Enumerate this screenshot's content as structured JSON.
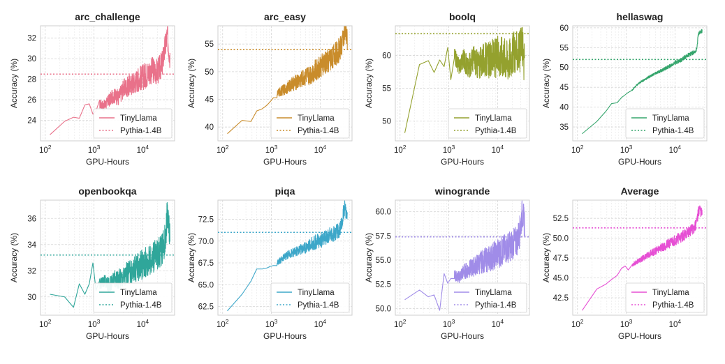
{
  "figure": {
    "xlabel": "GPU-Hours",
    "ylabel": "Accuracy (%)",
    "legend": [
      "TinyLlama",
      "Pythia-1.4B"
    ]
  },
  "chart_data": [
    {
      "type": "line",
      "title": "arc_challenge",
      "xlabel": "GPU-Hours",
      "ylabel": "Accuracy (%)",
      "x_scale": "log",
      "xlim": [
        80,
        45000
      ],
      "ylim": [
        22.0,
        33.2
      ],
      "xticks": [
        100,
        1000,
        10000
      ],
      "xtick_labels": [
        "10^2",
        "10^3",
        "10^4"
      ],
      "yticks": [
        24,
        26,
        28,
        30,
        32
      ],
      "ytick_labels": [
        "24",
        "26",
        "28",
        "30",
        "32"
      ],
      "legend_position": "lower-right",
      "grid": true,
      "color": "#e9718a",
      "series": [
        {
          "name": "TinyLlama",
          "style": "solid",
          "x": [
            125,
            250,
            380,
            500,
            650,
            800,
            950,
            1100,
            1300,
            1600,
            2000,
            2500,
            3200,
            4000,
            5000,
            6500,
            8000,
            10000,
            13000,
            16000,
            20000,
            25000,
            28000,
            30000,
            32000,
            34000,
            36000
          ],
          "y": [
            22.6,
            23.9,
            24.3,
            24.2,
            25.5,
            25.6,
            24.6,
            24.9,
            25.6,
            25.4,
            25.9,
            26.4,
            26.2,
            27.1,
            27.3,
            27.6,
            28.0,
            28.2,
            28.6,
            28.9,
            28.7,
            29.5,
            30.8,
            31.6,
            32.3,
            31.0,
            30.2
          ],
          "noise_from": 1300,
          "noise_amplitude": 1.3
        },
        {
          "name": "Pythia-1.4B",
          "style": "dotted",
          "value": 28.5
        }
      ]
    },
    {
      "type": "line",
      "title": "arc_easy",
      "xlabel": "GPU-Hours",
      "ylabel": "Accuracy (%)",
      "x_scale": "log",
      "xlim": [
        80,
        45000
      ],
      "ylim": [
        37.5,
        58.3
      ],
      "xticks": [
        100,
        1000,
        10000
      ],
      "xtick_labels": [
        "10^2",
        "10^3",
        "10^4"
      ],
      "yticks": [
        40,
        45,
        50,
        55
      ],
      "ytick_labels": [
        "40",
        "45",
        "50",
        "55"
      ],
      "legend_position": "lower-right",
      "grid": true,
      "color": "#c98c2b",
      "series": [
        {
          "name": "TinyLlama",
          "style": "solid",
          "x": [
            125,
            250,
            380,
            500,
            650,
            800,
            950,
            1100,
            1300,
            1600,
            2000,
            2500,
            3200,
            4000,
            5000,
            6500,
            8000,
            10000,
            13000,
            16000,
            20000,
            25000,
            28000,
            30000,
            32000,
            34000,
            36000
          ],
          "y": [
            38.8,
            41.2,
            41.0,
            42.9,
            43.3,
            43.9,
            44.6,
            45.3,
            45.9,
            46.5,
            47.0,
            47.6,
            48.1,
            48.6,
            49.1,
            49.6,
            50.2,
            50.8,
            51.6,
            52.3,
            53.0,
            54.0,
            55.0,
            56.5,
            57.3,
            56.4,
            55.9
          ],
          "noise_from": 1300,
          "noise_amplitude": 2.2
        },
        {
          "name": "Pythia-1.4B",
          "style": "dotted",
          "value": 54.0
        }
      ]
    },
    {
      "type": "line",
      "title": "boolq",
      "xlabel": "GPU-Hours",
      "ylabel": "Accuracy (%)",
      "x_scale": "log",
      "xlim": [
        80,
        45000
      ],
      "ylim": [
        47.0,
        64.5
      ],
      "xticks": [
        100,
        1000,
        10000
      ],
      "xtick_labels": [
        "10^2",
        "10^3",
        "10^4"
      ],
      "yticks": [
        50,
        55,
        60
      ],
      "ytick_labels": [
        "50",
        "55",
        "60"
      ],
      "legend_position": "lower-right",
      "grid": true,
      "color": "#94a12e",
      "series": [
        {
          "name": "TinyLlama",
          "style": "solid",
          "x": [
            125,
            250,
            380,
            500,
            650,
            800,
            950,
            1100,
            1300,
            1600,
            2000,
            2500,
            3200,
            4000,
            5000,
            6500,
            8000,
            10000,
            13000,
            16000,
            20000,
            25000,
            28000,
            30000,
            32000,
            34000,
            36000
          ],
          "y": [
            48.2,
            58.6,
            59.2,
            57.4,
            59.3,
            58.3,
            61.2,
            56.3,
            60.0,
            58.4,
            59.5,
            58.0,
            59.7,
            58.5,
            59.4,
            59.2,
            59.6,
            59.8,
            60.2,
            59.4,
            60.3,
            60.7,
            60.4,
            61.0,
            62.1,
            58.9,
            60.2
          ],
          "noise_from": 1300,
          "noise_amplitude": 3.3
        },
        {
          "name": "Pythia-1.4B",
          "style": "dotted",
          "value": 63.3
        }
      ]
    },
    {
      "type": "line",
      "title": "hellaswag",
      "xlabel": "GPU-Hours",
      "ylabel": "Accuracy (%)",
      "x_scale": "log",
      "xlim": [
        80,
        45000
      ],
      "ylim": [
        31.5,
        60.5
      ],
      "xticks": [
        100,
        1000,
        10000
      ],
      "xtick_labels": [
        "10^2",
        "10^3",
        "10^4"
      ],
      "yticks": [
        35,
        40,
        45,
        50,
        55,
        60
      ],
      "ytick_labels": [
        "35",
        "40",
        "45",
        "50",
        "55",
        "60"
      ],
      "legend_position": "lower-right",
      "grid": true,
      "color": "#35a56c",
      "series": [
        {
          "name": "TinyLlama",
          "style": "solid",
          "x": [
            125,
            250,
            380,
            500,
            650,
            800,
            950,
            1100,
            1300,
            1600,
            2000,
            2500,
            3200,
            4000,
            5000,
            6500,
            8000,
            10000,
            13000,
            16000,
            20000,
            25000,
            28000,
            30000,
            32000,
            34000,
            36000
          ],
          "y": [
            33.3,
            36.4,
            38.9,
            40.9,
            41.1,
            42.4,
            43.1,
            43.7,
            44.2,
            45.4,
            46.4,
            47.1,
            47.9,
            48.5,
            49.1,
            49.8,
            50.4,
            51.2,
            51.8,
            52.6,
            53.3,
            53.9,
            54.6,
            58.3,
            58.7,
            59.0,
            59.2
          ],
          "noise_from": 1300,
          "noise_amplitude": 0.5
        },
        {
          "name": "Pythia-1.4B",
          "style": "dotted",
          "value": 52.0
        }
      ]
    },
    {
      "type": "line",
      "title": "openbookqa",
      "xlabel": "GPU-Hours",
      "ylabel": "Accuracy (%)",
      "x_scale": "log",
      "xlim": [
        80,
        45000
      ],
      "ylim": [
        28.6,
        37.4
      ],
      "xticks": [
        100,
        1000,
        10000
      ],
      "xtick_labels": [
        "10^2",
        "10^3",
        "10^4"
      ],
      "yticks": [
        30,
        32,
        34,
        36
      ],
      "ytick_labels": [
        "30",
        "32",
        "34",
        "36"
      ],
      "legend_position": "lower-right",
      "grid": true,
      "color": "#2fa69a",
      "series": [
        {
          "name": "TinyLlama",
          "style": "solid",
          "x": [
            125,
            250,
            380,
            500,
            650,
            800,
            950,
            1100,
            1300,
            1600,
            2000,
            2500,
            3200,
            4000,
            5000,
            6500,
            8000,
            10000,
            13000,
            16000,
            20000,
            25000,
            28000,
            30000,
            32000,
            34000,
            36000
          ],
          "y": [
            30.2,
            30.0,
            29.2,
            31.0,
            30.2,
            31.0,
            32.6,
            30.5,
            31.0,
            31.2,
            30.9,
            31.3,
            31.4,
            31.6,
            31.8,
            32.0,
            32.3,
            32.5,
            32.7,
            33.0,
            33.3,
            33.6,
            34.2,
            35.0,
            36.6,
            35.2,
            34.8
          ],
          "noise_from": 1300,
          "noise_amplitude": 1.2
        },
        {
          "name": "Pythia-1.4B",
          "style": "dotted",
          "value": 33.2
        }
      ]
    },
    {
      "type": "line",
      "title": "piqa",
      "xlabel": "GPU-Hours",
      "ylabel": "Accuracy (%)",
      "x_scale": "log",
      "xlim": [
        80,
        45000
      ],
      "ylim": [
        61.5,
        74.7
      ],
      "xticks": [
        100,
        1000,
        10000
      ],
      "xtick_labels": [
        "10^2",
        "10^3",
        "10^4"
      ],
      "yticks": [
        62.5,
        65.0,
        67.5,
        70.0,
        72.5
      ],
      "ytick_labels": [
        "62.5",
        "65.0",
        "67.5",
        "70.0",
        "72.5"
      ],
      "legend_position": "lower-right",
      "grid": true,
      "color": "#3da7c9",
      "series": [
        {
          "name": "TinyLlama",
          "style": "solid",
          "x": [
            125,
            250,
            380,
            500,
            650,
            800,
            950,
            1100,
            1300,
            1600,
            2000,
            2500,
            3200,
            4000,
            5000,
            6500,
            8000,
            10000,
            13000,
            16000,
            20000,
            25000,
            28000,
            30000,
            32000,
            34000,
            36000
          ],
          "y": [
            62.0,
            63.9,
            65.4,
            66.8,
            66.8,
            66.9,
            67.1,
            67.2,
            67.5,
            67.9,
            68.3,
            68.6,
            68.8,
            69.1,
            69.3,
            69.6,
            69.9,
            70.1,
            70.4,
            70.7,
            70.9,
            71.3,
            72.0,
            73.3,
            74.0,
            73.2,
            73.0
          ],
          "noise_from": 1300,
          "noise_amplitude": 0.9
        },
        {
          "name": "Pythia-1.4B",
          "style": "dotted",
          "value": 71.0
        }
      ]
    },
    {
      "type": "line",
      "title": "winogrande",
      "xlabel": "GPU-Hours",
      "ylabel": "Accuracy (%)",
      "x_scale": "log",
      "xlim": [
        80,
        45000
      ],
      "ylim": [
        49.3,
        61.2
      ],
      "xticks": [
        100,
        1000,
        10000
      ],
      "xtick_labels": [
        "10^2",
        "10^3",
        "10^4"
      ],
      "yticks": [
        50.0,
        52.5,
        55.0,
        57.5,
        60.0
      ],
      "ytick_labels": [
        "50.0",
        "52.5",
        "55.0",
        "57.5",
        "60.0"
      ],
      "legend_position": "lower-left",
      "grid": true,
      "color": "#a08ce8",
      "series": [
        {
          "name": "TinyLlama",
          "style": "solid",
          "x": [
            125,
            250,
            380,
            500,
            650,
            800,
            950,
            1100,
            1300,
            1600,
            2000,
            2500,
            3200,
            4000,
            5000,
            6500,
            8000,
            10000,
            13000,
            16000,
            20000,
            25000,
            28000,
            30000,
            32000,
            34000,
            36000
          ],
          "y": [
            50.9,
            51.9,
            51.2,
            51.4,
            49.8,
            53.6,
            52.6,
            53.1,
            53.4,
            53.2,
            53.8,
            54.0,
            54.3,
            54.6,
            54.9,
            55.1,
            55.4,
            55.7,
            56.0,
            56.3,
            56.6,
            57.0,
            57.8,
            58.6,
            60.0,
            59.3,
            58.8
          ],
          "noise_from": 1300,
          "noise_amplitude": 1.6
        },
        {
          "name": "Pythia-1.4B",
          "style": "dotted",
          "value": 57.4
        }
      ]
    },
    {
      "type": "line",
      "title": "Average",
      "xlabel": "GPU-Hours",
      "ylabel": "Accuracy (%)",
      "x_scale": "log",
      "xlim": [
        80,
        45000
      ],
      "ylim": [
        40.3,
        54.8
      ],
      "xticks": [
        100,
        1000,
        10000
      ],
      "xtick_labels": [
        "10^2",
        "10^3",
        "10^4"
      ],
      "yticks": [
        42.5,
        45.0,
        47.5,
        50.0,
        52.5
      ],
      "ytick_labels": [
        "42.5",
        "45.0",
        "47.5",
        "50.0",
        "52.5"
      ],
      "legend_position": "lower-right",
      "grid": true,
      "color": "#e64fd4",
      "series": [
        {
          "name": "TinyLlama",
          "style": "solid",
          "x": [
            125,
            250,
            380,
            500,
            650,
            800,
            950,
            1100,
            1300,
            1600,
            2000,
            2500,
            3200,
            4000,
            5000,
            6500,
            8000,
            10000,
            13000,
            16000,
            20000,
            25000,
            28000,
            30000,
            32000,
            34000,
            36000
          ],
          "y": [
            40.9,
            43.6,
            44.2,
            44.8,
            45.3,
            46.2,
            46.5,
            46.0,
            46.6,
            47.0,
            47.3,
            47.7,
            48.1,
            48.4,
            48.8,
            49.1,
            49.4,
            49.8,
            50.1,
            50.5,
            50.9,
            51.3,
            52.0,
            53.2,
            53.8,
            53.3,
            53.0
          ],
          "noise_from": 1300,
          "noise_amplitude": 0.7
        },
        {
          "name": "Pythia-1.4B",
          "style": "dotted",
          "value": 51.3
        }
      ]
    }
  ]
}
